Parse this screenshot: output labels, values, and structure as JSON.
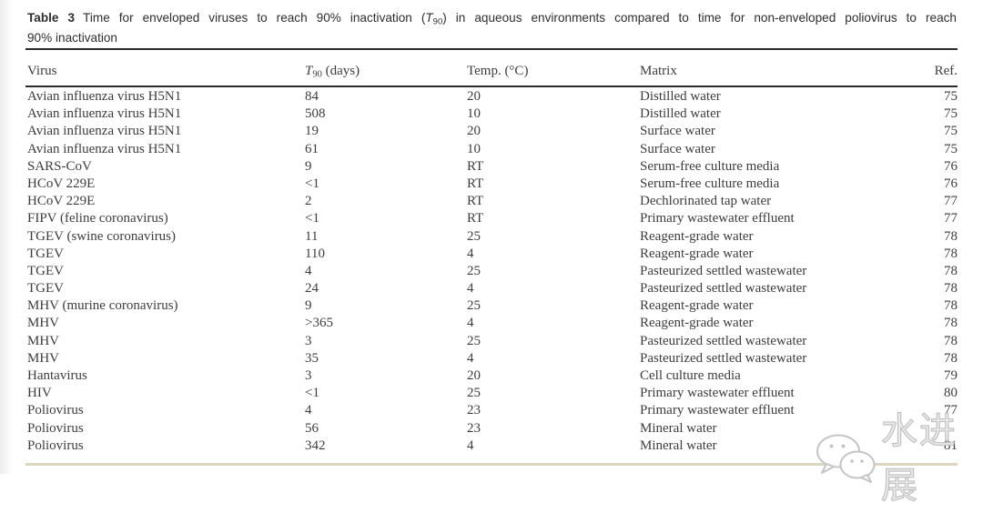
{
  "caption": {
    "label": "Table 3",
    "line1_pre": "Time for enveloped viruses to reach 90% inactivation (",
    "t_italic": "T",
    "t_sub": "90",
    "line1_post": ") in aqueous environments compared to time for non-enveloped poliovirus to reach",
    "line2": "90% inactivation"
  },
  "table": {
    "headers": {
      "virus": "Virus",
      "t90_t": "T",
      "t90_sub": "90",
      "t90_rest": " (days)",
      "temp": "Temp. (°C)",
      "matrix": "Matrix",
      "ref": "Ref."
    },
    "rows": [
      {
        "virus": "Avian influenza virus H5N1",
        "t90": "84",
        "temp": "20",
        "matrix": "Distilled water",
        "ref": "75"
      },
      {
        "virus": "Avian influenza virus H5N1",
        "t90": "508",
        "temp": "10",
        "matrix": "Distilled water",
        "ref": "75"
      },
      {
        "virus": "Avian influenza virus H5N1",
        "t90": "19",
        "temp": "20",
        "matrix": "Surface water",
        "ref": "75"
      },
      {
        "virus": "Avian influenza virus H5N1",
        "t90": "61",
        "temp": "10",
        "matrix": "Surface water",
        "ref": "75"
      },
      {
        "virus": "SARS-CoV",
        "t90": "9",
        "temp": "RT",
        "matrix": "Serum-free culture media",
        "ref": "76"
      },
      {
        "virus": "HCoV 229E",
        "t90": "<1",
        "temp": "RT",
        "matrix": "Serum-free culture media",
        "ref": "76"
      },
      {
        "virus": "HCoV 229E",
        "t90": "2",
        "temp": "RT",
        "matrix": "Dechlorinated tap water",
        "ref": "77"
      },
      {
        "virus": "FIPV (feline coronavirus)",
        "t90": "<1",
        "temp": "RT",
        "matrix": "Primary wastewater effluent",
        "ref": "77"
      },
      {
        "virus": "TGEV (swine coronavirus)",
        "t90": "11",
        "temp": "25",
        "matrix": "Reagent-grade water",
        "ref": "78"
      },
      {
        "virus": "TGEV",
        "t90": "110",
        "temp": "4",
        "matrix": "Reagent-grade water",
        "ref": "78"
      },
      {
        "virus": "TGEV",
        "t90": "4",
        "temp": "25",
        "matrix": "Pasteurized settled wastewater",
        "ref": "78"
      },
      {
        "virus": "TGEV",
        "t90": "24",
        "temp": "4",
        "matrix": "Pasteurized settled wastewater",
        "ref": "78"
      },
      {
        "virus": "MHV (murine coronavirus)",
        "t90": "9",
        "temp": "25",
        "matrix": "Reagent-grade water",
        "ref": "78"
      },
      {
        "virus": "MHV",
        "t90": ">365",
        "temp": "4",
        "matrix": "Reagent-grade water",
        "ref": "78"
      },
      {
        "virus": "MHV",
        "t90": "3",
        "temp": "25",
        "matrix": "Pasteurized settled wastewater",
        "ref": "78"
      },
      {
        "virus": "MHV",
        "t90": "35",
        "temp": "4",
        "matrix": "Pasteurized settled wastewater",
        "ref": "78"
      },
      {
        "virus": "Hantavirus",
        "t90": "3",
        "temp": "20",
        "matrix": "Cell culture media",
        "ref": "79"
      },
      {
        "virus": "HIV",
        "t90": "<1",
        "temp": "25",
        "matrix": "Primary wastewater effluent",
        "ref": "80"
      },
      {
        "virus": "Poliovirus",
        "t90": "4",
        "temp": "23",
        "matrix": "Primary wastewater effluent",
        "ref": "77"
      },
      {
        "virus": "Poliovirus",
        "t90": "56",
        "temp": "23",
        "matrix": "Mineral water",
        "ref": ""
      },
      {
        "virus": "Poliovirus",
        "t90": "342",
        "temp": "4",
        "matrix": "Mineral water",
        "ref": "81"
      }
    ]
  },
  "watermark": {
    "text": "水进展",
    "icon": "wechat-bubbles-icon"
  },
  "colors": {
    "rule_dark": "#2b2b2b",
    "rule_bottom": "#dcd6bf",
    "text": "#3d3d3d",
    "watermark_gray": "#c2c2c2"
  }
}
